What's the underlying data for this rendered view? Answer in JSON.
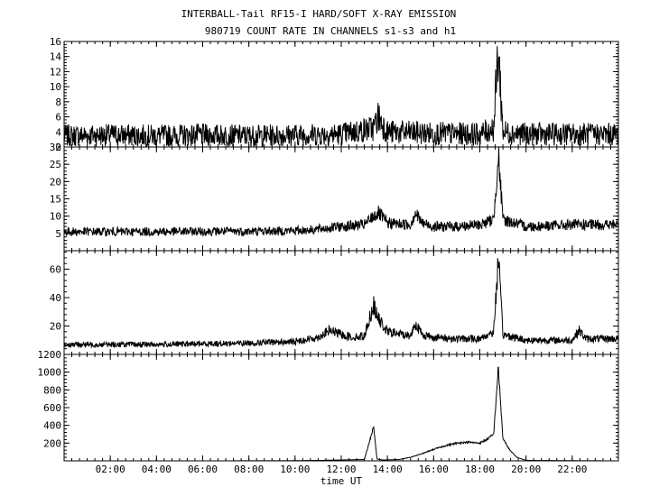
{
  "chart_data": {
    "type": "line",
    "title": "INTERBALL-Tail RF15-I HARD/SOFT X-RAY EMISSION",
    "subtitle": "980719  COUNT RATE IN CHANNELS s1-s3 and h1",
    "xlabel": "time UT",
    "x_unit": "hours UT",
    "xlim": [
      0,
      24
    ],
    "x_ticks": [
      2,
      4,
      6,
      8,
      10,
      12,
      14,
      16,
      18,
      20,
      22
    ],
    "x_tick_labels": [
      "02:00",
      "04:00",
      "06:00",
      "08:00",
      "10:00",
      "12:00",
      "14:00",
      "16:00",
      "18:00",
      "20:00",
      "22:00"
    ],
    "grid": false,
    "panels": [
      {
        "ylim": [
          2,
          16
        ],
        "y_ticks": [
          2,
          4,
          6,
          8,
          10,
          12,
          14,
          16
        ],
        "y_tick_labels": [
          "2",
          "4",
          "6",
          "8",
          "10",
          "12",
          "14",
          "16"
        ],
        "noise": "high",
        "series": [
          {
            "x": [
              0,
              2,
              4,
              6,
              8,
              10,
              12,
              13.4,
              13.6,
              14,
              16,
              18,
              18.6,
              18.8,
              19,
              20,
              22,
              24
            ],
            "y": [
              3.5,
              3.6,
              3.5,
              3.6,
              3.5,
              3.6,
              3.7,
              4.5,
              6,
              4,
              3.8,
              3.7,
              4.5,
              15,
              4,
              3.7,
              3.7,
              3.7
            ]
          }
        ]
      },
      {
        "ylim": [
          0,
          30
        ],
        "y_ticks": [
          5,
          10,
          15,
          20,
          25,
          30
        ],
        "y_tick_labels": [
          "5",
          "10",
          "15",
          "20",
          "25",
          "30"
        ],
        "noise": "medium",
        "series": [
          {
            "x": [
              0,
              2,
              4,
              6,
              8,
              10,
              11,
              12,
              13,
              13.4,
              13.6,
              14,
              15,
              15.2,
              15.5,
              16,
              17,
              18,
              18.6,
              18.8,
              19,
              20,
              22,
              24
            ],
            "y": [
              5.5,
              5.5,
              5.5,
              5.6,
              5.6,
              5.8,
              6.2,
              7,
              7.5,
              10,
              11,
              8,
              7.5,
              11,
              8,
              7,
              7,
              7.5,
              9,
              28,
              9,
              7,
              7.5,
              7.5
            ]
          }
        ]
      },
      {
        "ylim": [
          0,
          73
        ],
        "y_ticks": [
          20,
          40,
          60
        ],
        "y_tick_labels": [
          "20",
          "40",
          "60"
        ],
        "noise": "medium",
        "series": [
          {
            "x": [
              0,
              2,
              4,
              6,
              8,
              10,
              11,
              11.5,
              12,
              12.5,
              13,
              13.4,
              13.6,
              14,
              15,
              15.2,
              15.5,
              16,
              17,
              18,
              18.6,
              18.8,
              19,
              20,
              22,
              22.3,
              22.6,
              23,
              24
            ],
            "y": [
              7,
              7,
              7,
              7.5,
              8,
              9,
              12,
              17,
              14,
              12,
              13,
              35,
              25,
              16,
              13,
              22,
              14,
              12,
              11,
              11,
              16,
              67,
              14,
              10,
              10,
              17,
              11,
              11,
              11
            ]
          }
        ]
      },
      {
        "ylim": [
          0,
          1200
        ],
        "y_ticks": [
          200,
          400,
          600,
          800,
          1000,
          1200
        ],
        "y_tick_labels": [
          "200",
          "400",
          "600",
          "800",
          "1000",
          "1200"
        ],
        "noise": "low",
        "series": [
          {
            "x": [
              0,
              6,
              10,
              11,
              12,
              13,
              13.4,
              13.55,
              13.8,
              14.5,
              15,
              15.5,
              16,
              16.5,
              17,
              17.5,
              18,
              18.3,
              18.6,
              18.8,
              19,
              19.3,
              19.6,
              20,
              22,
              24
            ],
            "y": [
              0,
              0,
              2,
              5,
              10,
              15,
              380,
              20,
              10,
              15,
              40,
              80,
              130,
              170,
              200,
              210,
              200,
              240,
              300,
              1050,
              250,
              120,
              40,
              5,
              2,
              0
            ]
          }
        ]
      }
    ]
  }
}
